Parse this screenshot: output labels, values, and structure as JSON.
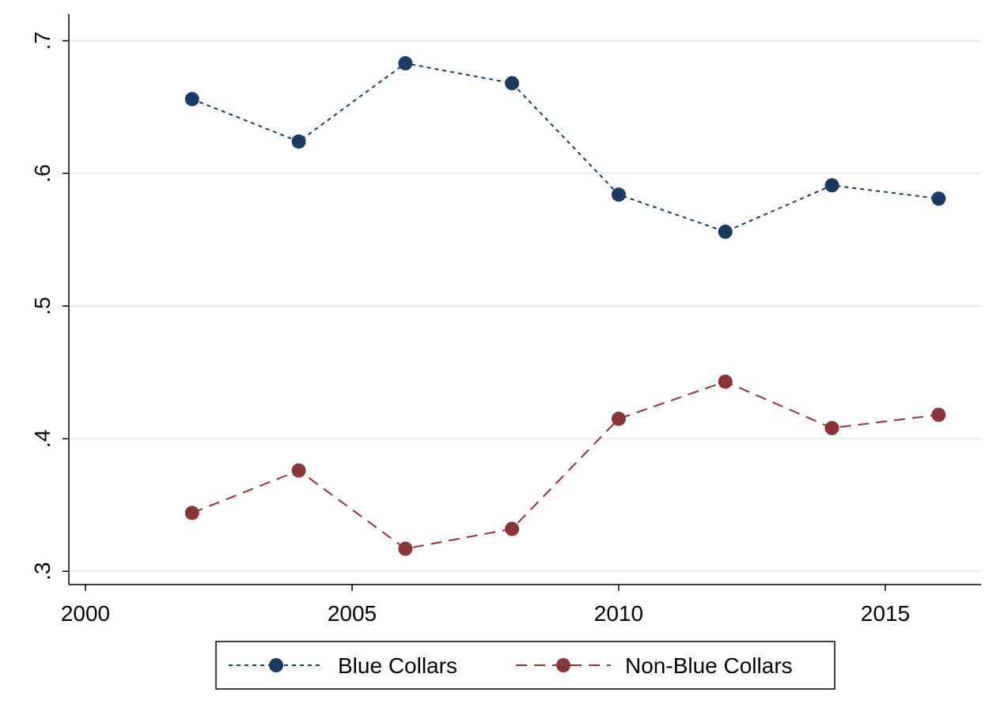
{
  "chart_data": {
    "type": "line",
    "title": "",
    "xlabel": "",
    "ylabel": "",
    "x": [
      2002,
      2004,
      2006,
      2008,
      2010,
      2012,
      2014,
      2016
    ],
    "xlim": [
      2000,
      2016.5
    ],
    "ylim": [
      0.29,
      0.72
    ],
    "x_ticks": [
      2000,
      2005,
      2010,
      2015
    ],
    "x_tick_labels": [
      "2000",
      "2005",
      "2010",
      "2015"
    ],
    "y_ticks": [
      0.3,
      0.4,
      0.5,
      0.6,
      0.7
    ],
    "y_tick_labels": [
      ".3",
      ".4",
      ".5",
      ".6",
      ".7"
    ],
    "grid": true,
    "legend_position": "bottom",
    "series": [
      {
        "name": "Blue Collars",
        "color": "#1a3a63",
        "line_style": "dotted",
        "values": [
          0.656,
          0.624,
          0.683,
          0.668,
          0.584,
          0.556,
          0.591,
          0.581
        ]
      },
      {
        "name": "Non-Blue Collars",
        "color": "#8b3438",
        "line_style": "dashed",
        "values": [
          0.344,
          0.376,
          0.317,
          0.332,
          0.415,
          0.443,
          0.408,
          0.418
        ]
      }
    ]
  }
}
